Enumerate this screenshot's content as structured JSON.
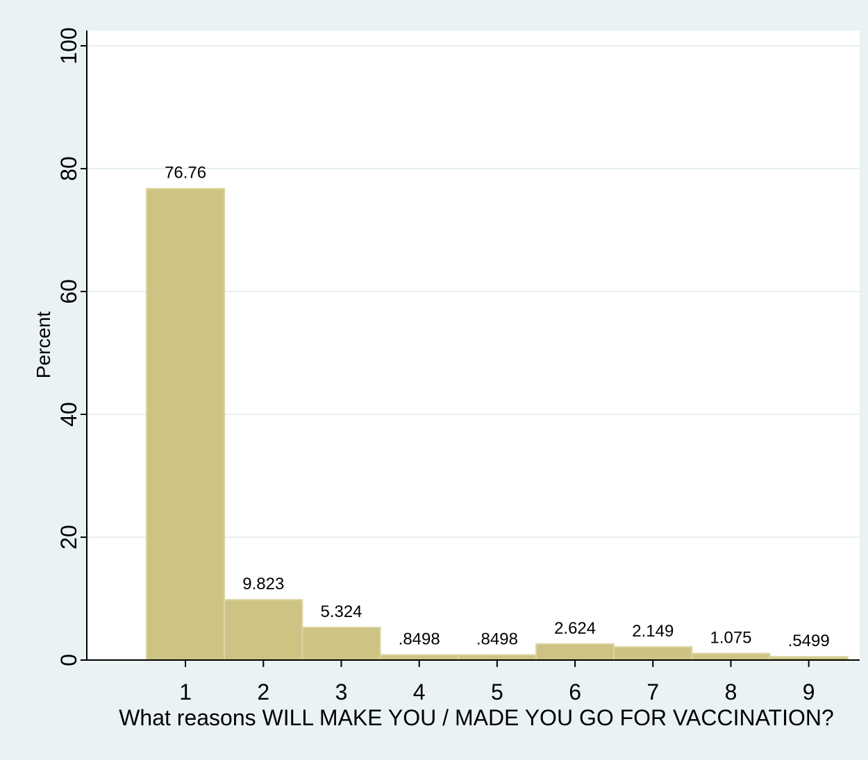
{
  "chart_data": {
    "type": "bar",
    "categories": [
      "1",
      "2",
      "3",
      "4",
      "5",
      "6",
      "7",
      "8",
      "9"
    ],
    "values": [
      76.76,
      9.823,
      5.324,
      0.8498,
      0.8498,
      2.624,
      2.149,
      1.075,
      0.5499
    ],
    "value_labels": [
      "76.76",
      "9.823",
      "5.324",
      ".8498",
      ".8498",
      "2.624",
      "2.149",
      "1.075",
      ".5499"
    ],
    "xlabel": "What reasons WILL MAKE YOU / MADE YOU GO FOR VACCINATION?",
    "ylabel": "Percent",
    "ylim": [
      0,
      100
    ],
    "yticks": [
      0,
      20,
      40,
      60,
      80,
      100
    ],
    "ytick_labels": [
      "0",
      "20",
      "40",
      "60",
      "80",
      "100"
    ],
    "grid": true,
    "colors": {
      "outer_background": "#eaf2f3",
      "plot_background": "#ffffff",
      "bar_fill": "#cdc383",
      "bar_edge": "#ddd6a6",
      "gridline": "#e6eeef",
      "axis": "#000000"
    }
  }
}
